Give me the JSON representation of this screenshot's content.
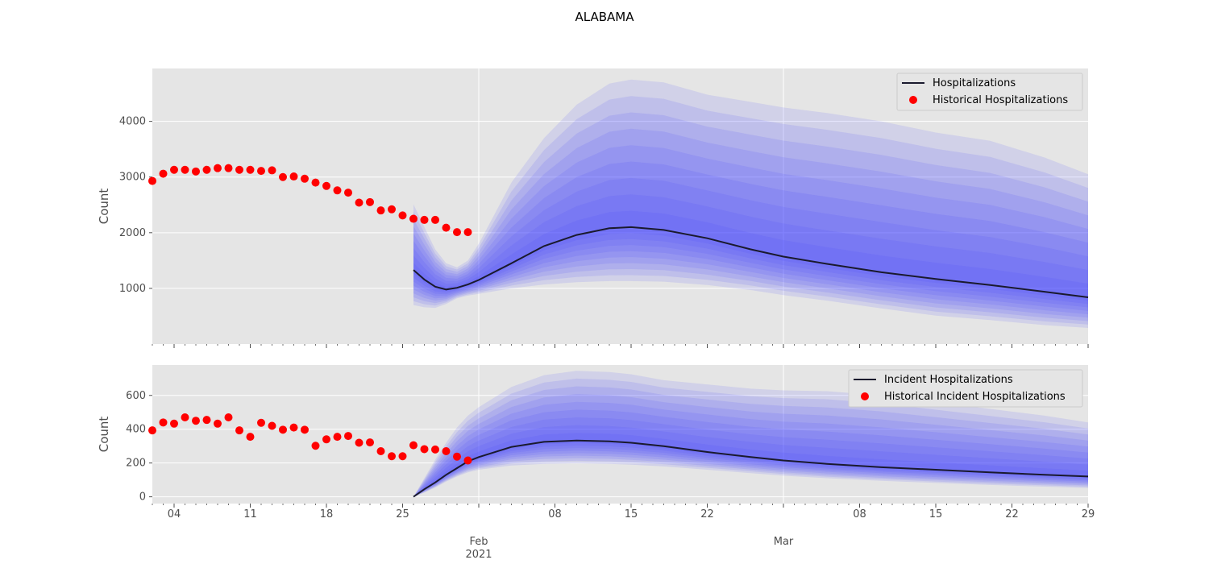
{
  "figure": {
    "title": "ALABAMA"
  },
  "colors": {
    "background": "#e5e5e5",
    "grid": "#ffffff",
    "median_line": "#1a1a2e",
    "historical_points": "#ff0000",
    "forecast_band": "#4040ff",
    "tick_text": "#4d4d4d"
  },
  "x_axis": {
    "tick_labels": [
      {
        "date": "2021-01-04",
        "label": "04"
      },
      {
        "date": "2021-01-11",
        "label": "11"
      },
      {
        "date": "2021-01-18",
        "label": "18"
      },
      {
        "date": "2021-01-25",
        "label": "25"
      },
      {
        "date": "2021-02-01",
        "label": "Feb\n2021"
      },
      {
        "date": "2021-02-08",
        "label": "08"
      },
      {
        "date": "2021-02-15",
        "label": "15"
      },
      {
        "date": "2021-02-22",
        "label": "22"
      },
      {
        "date": "2021-03-01",
        "label": "Mar"
      },
      {
        "date": "2021-03-08",
        "label": "08"
      },
      {
        "date": "2021-03-15",
        "label": "15"
      },
      {
        "date": "2021-03-22",
        "label": "22"
      },
      {
        "date": "2021-03-29",
        "label": "29"
      }
    ]
  },
  "chart_data": [
    {
      "type": "line",
      "panel": "top",
      "ylabel": "Count",
      "xlim": [
        "2021-01-02",
        "2021-03-29"
      ],
      "ylim": [
        0,
        4950
      ],
      "yticks": [
        1000,
        2000,
        3000,
        4000
      ],
      "grid": true,
      "legend_placement": "top-right",
      "legend": [
        "Hospitalizations",
        "Historical Hospitalizations"
      ],
      "forecast_start": "2021-01-26",
      "series": [
        {
          "name": "Hospitalizations",
          "kind": "line",
          "x": [
            "2021-01-26",
            "2021-01-27",
            "2021-01-28",
            "2021-01-29",
            "2021-01-30",
            "2021-01-31",
            "2021-02-01",
            "2021-02-04",
            "2021-02-07",
            "2021-02-10",
            "2021-02-13",
            "2021-02-15",
            "2021-02-18",
            "2021-02-22",
            "2021-02-26",
            "2021-03-01",
            "2021-03-05",
            "2021-03-10",
            "2021-03-15",
            "2021-03-20",
            "2021-03-25",
            "2021-03-29"
          ],
          "values": [
            1330,
            1160,
            1030,
            980,
            1010,
            1070,
            1150,
            1450,
            1760,
            1960,
            2080,
            2100,
            2050,
            1900,
            1700,
            1570,
            1440,
            1290,
            1170,
            1060,
            940,
            840
          ]
        },
        {
          "name": "Historical Hospitalizations",
          "kind": "scatter",
          "x": [
            "2021-01-02",
            "2021-01-03",
            "2021-01-04",
            "2021-01-05",
            "2021-01-06",
            "2021-01-07",
            "2021-01-08",
            "2021-01-09",
            "2021-01-10",
            "2021-01-11",
            "2021-01-12",
            "2021-01-13",
            "2021-01-14",
            "2021-01-15",
            "2021-01-16",
            "2021-01-17",
            "2021-01-18",
            "2021-01-19",
            "2021-01-20",
            "2021-01-21",
            "2021-01-22",
            "2021-01-23",
            "2021-01-24",
            "2021-01-25",
            "2021-01-26",
            "2021-01-27",
            "2021-01-28",
            "2021-01-29",
            "2021-01-30",
            "2021-01-31"
          ],
          "values": [
            2930,
            3060,
            3130,
            3130,
            3100,
            3130,
            3160,
            3160,
            3130,
            3130,
            3110,
            3120,
            3000,
            3010,
            2970,
            2900,
            2840,
            2760,
            2720,
            2540,
            2550,
            2400,
            2420,
            2310,
            2250,
            2230,
            2230,
            2090,
            2010,
            2010
          ]
        }
      ],
      "bands": {
        "x": [
          "2021-01-26",
          "2021-01-27",
          "2021-01-28",
          "2021-01-29",
          "2021-01-30",
          "2021-01-31",
          "2021-02-01",
          "2021-02-04",
          "2021-02-07",
          "2021-02-10",
          "2021-02-13",
          "2021-02-15",
          "2021-02-18",
          "2021-02-22",
          "2021-02-26",
          "2021-03-01",
          "2021-03-05",
          "2021-03-10",
          "2021-03-15",
          "2021-03-20",
          "2021-03-25",
          "2021-03-29"
        ],
        "upper_outer": [
          2510,
          2100,
          1700,
          1450,
          1380,
          1500,
          1800,
          2900,
          3700,
          4300,
          4680,
          4750,
          4700,
          4480,
          4350,
          4250,
          4150,
          4000,
          3800,
          3650,
          3350,
          3050
        ],
        "lower_outer": [
          700,
          660,
          650,
          720,
          820,
          870,
          900,
          1000,
          1070,
          1110,
          1130,
          1130,
          1120,
          1060,
          970,
          880,
          780,
          640,
          510,
          430,
          340,
          290
        ]
      }
    },
    {
      "type": "line",
      "panel": "bottom",
      "ylabel": "Count",
      "xlim": [
        "2021-01-02",
        "2021-03-29"
      ],
      "ylim": [
        -40,
        780
      ],
      "yticks": [
        0,
        200,
        400,
        600
      ],
      "grid": true,
      "legend_placement": "top-right",
      "legend": [
        "Incident Hospitalizations",
        "Historical Incident Hospitalizations"
      ],
      "forecast_start": "2021-01-26",
      "series": [
        {
          "name": "Incident Hospitalizations",
          "kind": "line",
          "x": [
            "2021-01-26",
            "2021-01-27",
            "2021-01-28",
            "2021-01-29",
            "2021-01-30",
            "2021-01-31",
            "2021-02-01",
            "2021-02-04",
            "2021-02-07",
            "2021-02-10",
            "2021-02-13",
            "2021-02-15",
            "2021-02-18",
            "2021-02-22",
            "2021-02-26",
            "2021-03-01",
            "2021-03-05",
            "2021-03-10",
            "2021-03-15",
            "2021-03-20",
            "2021-03-25",
            "2021-03-29"
          ],
          "values": [
            0,
            45,
            85,
            130,
            170,
            210,
            235,
            295,
            325,
            333,
            328,
            320,
            300,
            265,
            235,
            215,
            195,
            175,
            160,
            145,
            130,
            120
          ]
        },
        {
          "name": "Historical Incident Hospitalizations",
          "kind": "scatter",
          "x": [
            "2021-01-02",
            "2021-01-03",
            "2021-01-04",
            "2021-01-05",
            "2021-01-06",
            "2021-01-07",
            "2021-01-08",
            "2021-01-09",
            "2021-01-10",
            "2021-01-11",
            "2021-01-12",
            "2021-01-13",
            "2021-01-14",
            "2021-01-15",
            "2021-01-16",
            "2021-01-17",
            "2021-01-18",
            "2021-01-19",
            "2021-01-20",
            "2021-01-21",
            "2021-01-22",
            "2021-01-23",
            "2021-01-24",
            "2021-01-25",
            "2021-01-26",
            "2021-01-27",
            "2021-01-28",
            "2021-01-29",
            "2021-01-30",
            "2021-01-31"
          ],
          "values": [
            393,
            440,
            433,
            470,
            450,
            455,
            433,
            470,
            393,
            355,
            438,
            420,
            397,
            410,
            397,
            302,
            340,
            355,
            360,
            320,
            322,
            270,
            240,
            240,
            305,
            282,
            280,
            270,
            238,
            215
          ]
        }
      ],
      "bands": {
        "x": [
          "2021-01-26",
          "2021-01-27",
          "2021-01-28",
          "2021-01-29",
          "2021-01-30",
          "2021-01-31",
          "2021-02-01",
          "2021-02-04",
          "2021-02-07",
          "2021-02-10",
          "2021-02-13",
          "2021-02-15",
          "2021-02-18",
          "2021-02-22",
          "2021-02-26",
          "2021-03-01",
          "2021-03-05",
          "2021-03-10",
          "2021-03-15",
          "2021-03-20",
          "2021-03-25",
          "2021-03-29"
        ],
        "upper_outer": [
          0,
          110,
          220,
          320,
          410,
          480,
          530,
          650,
          720,
          745,
          738,
          725,
          690,
          665,
          640,
          630,
          625,
          600,
          560,
          520,
          480,
          440
        ],
        "lower_outer": [
          0,
          25,
          55,
          90,
          120,
          145,
          160,
          185,
          195,
          198,
          195,
          190,
          180,
          160,
          140,
          125,
          110,
          95,
          82,
          70,
          60,
          52
        ]
      }
    }
  ]
}
